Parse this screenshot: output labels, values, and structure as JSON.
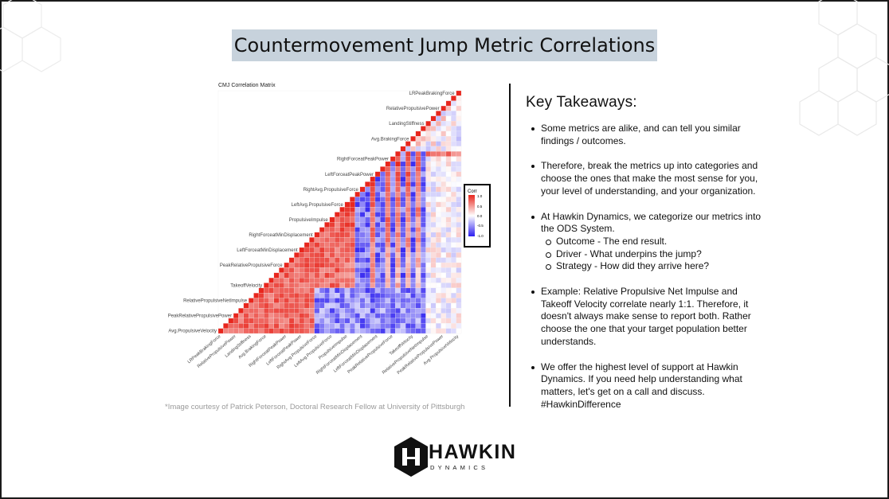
{
  "title": "Countermovement Jump Metric Correlations",
  "chart": {
    "title": "CMJ Correlation Matrix",
    "legend_title": "Corr",
    "legend_ticks": [
      "1.0",
      "0.5",
      "0.0",
      "-0.5",
      "-1.0"
    ],
    "colors": {
      "positive": "#e8261d",
      "neutral": "#ffffff",
      "negative": "#2d1ff0"
    }
  },
  "chart_data": {
    "type": "heatmap",
    "title": "CMJ Correlation Matrix",
    "matrix_shape": "lower-triangular",
    "n_metrics": 48,
    "value_range": [
      -1.0,
      1.0
    ],
    "legend": {
      "title": "Corr",
      "ticks": [
        1.0,
        0.5,
        0.0,
        -0.5,
        -1.0
      ]
    },
    "row_labels_visible": [
      "LRPeakBrakingForce",
      "RelativePropulsivePower",
      "LandingStiffness",
      "Avg.BrakingForce",
      "RightForceatPeakPower",
      "LeftForceatPeakPower",
      "RightAvg.PropulsiveForce",
      "LeftAvg.PropulsiveForce",
      "PropulsiveImpulse",
      "RightForceatMinDisplacement",
      "LeftForceatMinDisplacement",
      "PeakRelativePropulsiveForce",
      "TakeoffVelocity",
      "RelativePropulsiveNetImpulse",
      "PeakRelativePropulsivePower",
      "Avg.PropulsiveVelocity"
    ]
  },
  "credit": "*Image courtesy of Patrick Peterson, Doctoral Research Fellow at University of Pittsburgh",
  "takeaways": {
    "heading": "Key Takeaways:",
    "b1": "Some metrics are alike, and can tell you similar findings / outcomes.",
    "b2": "Therefore, break the metrics up into categories and choose the ones that make the most sense for you, your level of understanding, and your organization.",
    "b3": "At Hawkin Dynamics, we categorize our metrics into the ODS System.",
    "b3_sub": [
      "Outcome - The end result.",
      "Driver - What underpins the jump?",
      "Strategy - How did they arrive here?"
    ],
    "b4": "Example: Relative Propulsive Net Impulse and Takeoff Velocity correlate nearly 1:1. Therefore, it doesn't always make sense to report both. Rather choose the one that your target population better understands.",
    "b5": "We offer the highest level of support at Hawkin Dynamics. If you need help understanding what matters, let's get on a call and discuss. #HawkinDifference"
  },
  "logo": {
    "word": "HAWKIN",
    "sub": "DYNAMICS"
  }
}
